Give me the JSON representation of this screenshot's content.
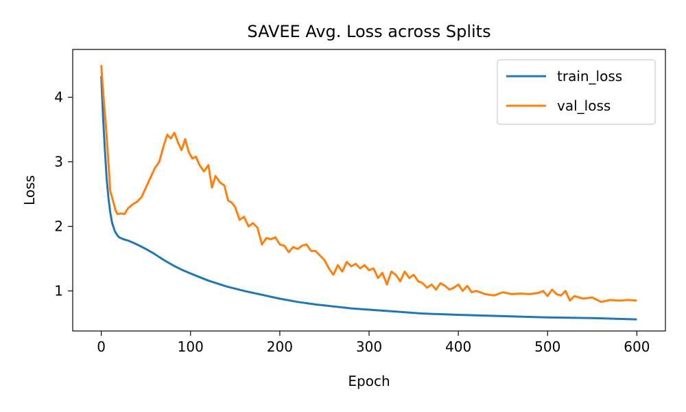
{
  "chart_data": {
    "type": "line",
    "title": "SAVEE Avg. Loss across Splits",
    "xlabel": "Epoch",
    "ylabel": "Loss",
    "xlim": [
      -32,
      632
    ],
    "ylim": [
      0.38,
      4.74
    ],
    "xticks": [
      0,
      100,
      200,
      300,
      400,
      500,
      600
    ],
    "yticks": [
      1,
      2,
      3,
      4
    ],
    "legend_position": "top-right",
    "series": [
      {
        "name": "train_loss",
        "color": "#1f77b4",
        "points": [
          [
            0,
            4.33
          ],
          [
            2,
            3.7
          ],
          [
            4,
            3.2
          ],
          [
            6,
            2.75
          ],
          [
            8,
            2.45
          ],
          [
            10,
            2.22
          ],
          [
            12,
            2.06
          ],
          [
            15,
            1.93
          ],
          [
            18,
            1.86
          ],
          [
            20,
            1.83
          ],
          [
            25,
            1.8
          ],
          [
            30,
            1.78
          ],
          [
            40,
            1.72
          ],
          [
            50,
            1.65
          ],
          [
            60,
            1.57
          ],
          [
            70,
            1.48
          ],
          [
            80,
            1.4
          ],
          [
            90,
            1.33
          ],
          [
            100,
            1.27
          ],
          [
            120,
            1.16
          ],
          [
            140,
            1.07
          ],
          [
            160,
            1.0
          ],
          [
            180,
            0.94
          ],
          [
            200,
            0.88
          ],
          [
            220,
            0.83
          ],
          [
            240,
            0.79
          ],
          [
            260,
            0.76
          ],
          [
            280,
            0.73
          ],
          [
            300,
            0.71
          ],
          [
            330,
            0.68
          ],
          [
            360,
            0.65
          ],
          [
            400,
            0.63
          ],
          [
            450,
            0.61
          ],
          [
            500,
            0.59
          ],
          [
            550,
            0.58
          ],
          [
            600,
            0.56
          ]
        ]
      },
      {
        "name": "val_loss",
        "color": "#ff7f0e",
        "points": [
          [
            0,
            4.5
          ],
          [
            2,
            4.1
          ],
          [
            5,
            3.6
          ],
          [
            8,
            3.0
          ],
          [
            10,
            2.55
          ],
          [
            13,
            2.4
          ],
          [
            16,
            2.25
          ],
          [
            18,
            2.19
          ],
          [
            22,
            2.2
          ],
          [
            26,
            2.19
          ],
          [
            30,
            2.28
          ],
          [
            35,
            2.34
          ],
          [
            40,
            2.38
          ],
          [
            45,
            2.45
          ],
          [
            50,
            2.6
          ],
          [
            55,
            2.75
          ],
          [
            60,
            2.9
          ],
          [
            65,
            3.0
          ],
          [
            70,
            3.25
          ],
          [
            74,
            3.42
          ],
          [
            78,
            3.36
          ],
          [
            82,
            3.45
          ],
          [
            86,
            3.3
          ],
          [
            90,
            3.18
          ],
          [
            94,
            3.35
          ],
          [
            98,
            3.15
          ],
          [
            102,
            3.05
          ],
          [
            106,
            3.08
          ],
          [
            110,
            2.95
          ],
          [
            115,
            2.85
          ],
          [
            120,
            2.95
          ],
          [
            124,
            2.6
          ],
          [
            128,
            2.78
          ],
          [
            133,
            2.68
          ],
          [
            138,
            2.63
          ],
          [
            142,
            2.4
          ],
          [
            146,
            2.37
          ],
          [
            150,
            2.3
          ],
          [
            155,
            2.1
          ],
          [
            160,
            2.15
          ],
          [
            165,
            2.0
          ],
          [
            170,
            2.05
          ],
          [
            175,
            1.98
          ],
          [
            180,
            1.72
          ],
          [
            185,
            1.82
          ],
          [
            190,
            1.8
          ],
          [
            195,
            1.83
          ],
          [
            200,
            1.72
          ],
          [
            205,
            1.7
          ],
          [
            210,
            1.6
          ],
          [
            215,
            1.68
          ],
          [
            220,
            1.65
          ],
          [
            225,
            1.7
          ],
          [
            230,
            1.72
          ],
          [
            235,
            1.62
          ],
          [
            240,
            1.62
          ],
          [
            245,
            1.55
          ],
          [
            250,
            1.48
          ],
          [
            255,
            1.35
          ],
          [
            260,
            1.25
          ],
          [
            265,
            1.4
          ],
          [
            270,
            1.3
          ],
          [
            275,
            1.45
          ],
          [
            280,
            1.38
          ],
          [
            285,
            1.42
          ],
          [
            290,
            1.35
          ],
          [
            295,
            1.4
          ],
          [
            300,
            1.32
          ],
          [
            305,
            1.35
          ],
          [
            310,
            1.2
          ],
          [
            315,
            1.28
          ],
          [
            320,
            1.1
          ],
          [
            325,
            1.3
          ],
          [
            330,
            1.25
          ],
          [
            335,
            1.15
          ],
          [
            340,
            1.3
          ],
          [
            345,
            1.2
          ],
          [
            350,
            1.25
          ],
          [
            355,
            1.15
          ],
          [
            360,
            1.12
          ],
          [
            365,
            1.05
          ],
          [
            370,
            1.1
          ],
          [
            375,
            1.02
          ],
          [
            380,
            1.12
          ],
          [
            385,
            1.08
          ],
          [
            390,
            1.02
          ],
          [
            395,
            1.05
          ],
          [
            400,
            1.1
          ],
          [
            405,
            1.0
          ],
          [
            410,
            1.08
          ],
          [
            415,
            0.98
          ],
          [
            420,
            1.0
          ],
          [
            430,
            0.95
          ],
          [
            440,
            0.93
          ],
          [
            450,
            0.98
          ],
          [
            460,
            0.95
          ],
          [
            470,
            0.96
          ],
          [
            480,
            0.95
          ],
          [
            490,
            0.97
          ],
          [
            495,
            1.0
          ],
          [
            500,
            0.92
          ],
          [
            505,
            1.02
          ],
          [
            510,
            0.95
          ],
          [
            515,
            0.93
          ],
          [
            520,
            1.0
          ],
          [
            525,
            0.85
          ],
          [
            530,
            0.92
          ],
          [
            540,
            0.88
          ],
          [
            550,
            0.9
          ],
          [
            560,
            0.83
          ],
          [
            570,
            0.86
          ],
          [
            580,
            0.85
          ],
          [
            590,
            0.86
          ],
          [
            600,
            0.85
          ]
        ]
      }
    ]
  }
}
